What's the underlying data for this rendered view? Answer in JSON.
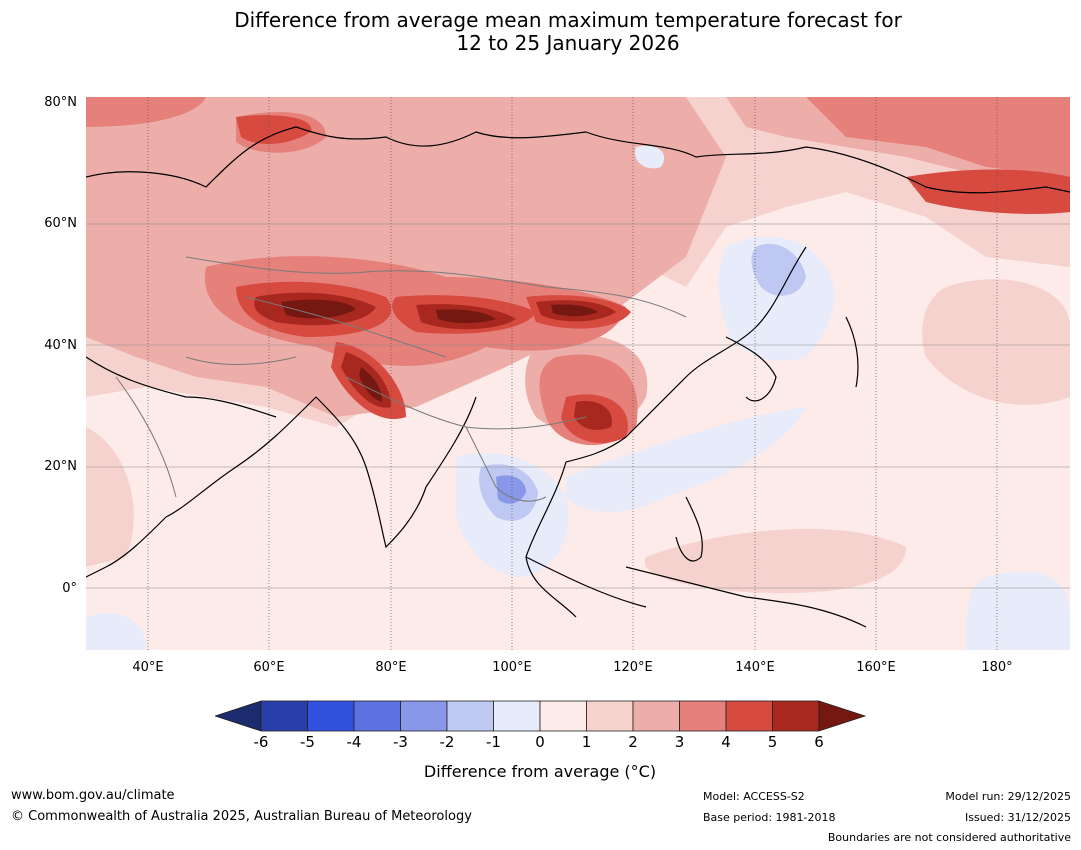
{
  "title": {
    "line1": "Difference from average mean maximum temperature forecast for",
    "line2": "12 to 25 January 2026"
  },
  "map": {
    "lat_labels": [
      "80°N",
      "60°N",
      "40°N",
      "20°N",
      "0°"
    ],
    "lon_labels": [
      "40°E",
      "60°E",
      "80°E",
      "100°E",
      "120°E",
      "140°E",
      "160°E",
      "180°"
    ]
  },
  "colorbar": {
    "ticks": [
      "-6",
      "-5",
      "-4",
      "-3",
      "-2",
      "-1",
      "0",
      "1",
      "2",
      "3",
      "4",
      "5",
      "6"
    ],
    "colors": [
      "#1c2a6e",
      "#283ea8",
      "#3050de",
      "#5d72e0",
      "#8897e8",
      "#bfc7f3",
      "#e8ebfa",
      "#fcebe9",
      "#f6d2cf",
      "#edaeaa",
      "#e5807b",
      "#d64a40",
      "#a8281f",
      "#761812"
    ],
    "title": "Difference from average (°C)"
  },
  "footer": {
    "url": "www.bom.gov.au/climate",
    "copyright": "© Commonwealth of Australia 2025, Australian Bureau of Meteorology",
    "model": "Model: ACCESS-S2",
    "base_period": "Base period: 1981-2018",
    "model_run": "Model run: 29/12/2025",
    "issued": "Issued: 31/12/2025",
    "disclaimer": "Boundaries are not considered authoritative"
  }
}
